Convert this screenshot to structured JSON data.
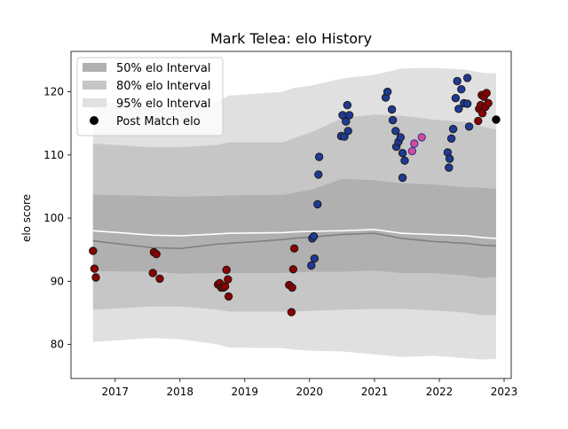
{
  "chart_data": {
    "type": "scatter",
    "title": "Mark Telea: elo History",
    "xlabel": "",
    "ylabel": "elo score",
    "xlim": [
      "2016-04-27",
      "2023-02-10"
    ],
    "ylim": [
      74.6,
      126.4
    ],
    "x_ticks": [
      "2017",
      "2018",
      "2019",
      "2020",
      "2021",
      "2022",
      "2023"
    ],
    "y_ticks": [
      80,
      90,
      100,
      110,
      120
    ],
    "grid": false,
    "legend": {
      "position": "top-left",
      "entries": [
        {
          "label": "50% elo Interval",
          "kind": "band",
          "color": "#b0b0b0"
        },
        {
          "label": "80% elo Interval",
          "kind": "band",
          "color": "#c6c6c6"
        },
        {
          "label": "95% elo Interval",
          "kind": "band",
          "color": "#e0e0e0"
        },
        {
          "label": "Post Match elo",
          "kind": "marker",
          "color": "#000000"
        }
      ]
    },
    "colors": {
      "band_50": "#b0b0b0",
      "band_80": "#c6c6c6",
      "band_95": "#e0e0e0",
      "median_line": "#808080",
      "mean_line": "#ffffff",
      "dot_early": "#8b0000",
      "dot_mid": "#1f3a93",
      "dot_highlight": "#d94896",
      "dot_last": "#000000"
    },
    "bands": {
      "x": [
        "2016-08-29",
        "2017-08-01",
        "2018-01-03",
        "2018-08-03",
        "2018-10-02",
        "2019-08-03",
        "2019-10-02",
        "2020-01-11",
        "2020-07-01",
        "2021-01-01",
        "2021-06-03",
        "2021-12-01",
        "2022-06-03",
        "2022-09-02",
        "2022-11-17"
      ],
      "median": [
        96.4,
        95.3,
        95.2,
        95.9,
        96.0,
        96.6,
        96.8,
        97.0,
        97.4,
        97.6,
        96.8,
        96.3,
        96.0,
        95.7,
        95.6
      ],
      "mean": [
        98.0,
        97.3,
        97.2,
        97.5,
        97.6,
        97.7,
        97.8,
        97.9,
        98.0,
        98.2,
        97.6,
        97.4,
        97.2,
        96.9,
        96.8
      ],
      "p50": [
        [
          91.6,
          103.7
        ],
        [
          91.5,
          103.5
        ],
        [
          91.2,
          103.4
        ],
        [
          91.3,
          103.5
        ],
        [
          91.3,
          103.6
        ],
        [
          91.3,
          103.7
        ],
        [
          91.4,
          104.0
        ],
        [
          91.5,
          104.5
        ],
        [
          91.5,
          106.2
        ],
        [
          91.7,
          106.0
        ],
        [
          91.3,
          105.5
        ],
        [
          91.3,
          105.3
        ],
        [
          90.9,
          104.9
        ],
        [
          90.5,
          104.8
        ],
        [
          90.7,
          104.6
        ]
      ],
      "p80": [
        [
          85.5,
          111.8
        ],
        [
          86.0,
          111.2
        ],
        [
          86.0,
          111.2
        ],
        [
          85.5,
          111.6
        ],
        [
          85.2,
          112.0
        ],
        [
          85.2,
          112.0
        ],
        [
          85.2,
          112.6
        ],
        [
          85.3,
          113.6
        ],
        [
          85.5,
          115.8
        ],
        [
          85.6,
          116.4
        ],
        [
          85.6,
          116.2
        ],
        [
          85.4,
          115.6
        ],
        [
          85.0,
          115.2
        ],
        [
          84.6,
          114.5
        ],
        [
          84.7,
          114.0
        ]
      ],
      "p95": [
        [
          80.4,
          118.6
        ],
        [
          81.0,
          117.4
        ],
        [
          80.8,
          117.5
        ],
        [
          80.0,
          118.5
        ],
        [
          79.5,
          119.4
        ],
        [
          79.4,
          120.0
        ],
        [
          79.2,
          120.6
        ],
        [
          79.0,
          121.0
        ],
        [
          78.9,
          122.1
        ],
        [
          78.4,
          122.7
        ],
        [
          78.0,
          123.7
        ],
        [
          78.2,
          123.8
        ],
        [
          77.8,
          123.5
        ],
        [
          77.6,
          123.0
        ],
        [
          77.7,
          122.9
        ]
      ]
    },
    "series": [
      {
        "group": "early",
        "points": [
          [
            "2016-08-29",
            94.8
          ],
          [
            "2016-09-06",
            92.0
          ],
          [
            "2016-09-14",
            90.6
          ],
          [
            "2017-08-01",
            91.3
          ],
          [
            "2017-08-07",
            94.6
          ],
          [
            "2017-08-21",
            94.3
          ],
          [
            "2017-09-09",
            90.4
          ],
          [
            "2018-08-03",
            89.5
          ],
          [
            "2018-08-13",
            89.7
          ],
          [
            "2018-08-21",
            89.0
          ],
          [
            "2018-09-03",
            89.0
          ],
          [
            "2018-09-12",
            89.2
          ],
          [
            "2018-09-20",
            91.8
          ],
          [
            "2018-09-28",
            90.3
          ],
          [
            "2018-10-02",
            87.6
          ],
          [
            "2019-09-08",
            89.4
          ],
          [
            "2019-09-21",
            85.1
          ],
          [
            "2019-09-25",
            89.0
          ],
          [
            "2019-10-01",
            91.9
          ],
          [
            "2019-10-07",
            95.2
          ]
        ]
      },
      {
        "group": "mid",
        "points": [
          [
            "2020-01-11",
            92.5
          ],
          [
            "2020-01-16",
            96.8
          ],
          [
            "2020-01-25",
            97.1
          ],
          [
            "2020-01-29",
            93.6
          ],
          [
            "2020-02-15",
            102.2
          ],
          [
            "2020-02-20",
            106.9
          ],
          [
            "2020-02-24",
            109.7
          ],
          [
            "2020-06-27",
            113.0
          ],
          [
            "2020-07-05",
            116.3
          ],
          [
            "2020-07-15",
            112.9
          ],
          [
            "2020-07-24",
            115.3
          ],
          [
            "2020-08-01",
            117.9
          ],
          [
            "2020-08-05",
            113.8
          ],
          [
            "2020-08-12",
            116.3
          ],
          [
            "2021-03-05",
            119.1
          ],
          [
            "2021-03-15",
            120.0
          ],
          [
            "2021-04-09",
            117.2
          ],
          [
            "2021-04-14",
            115.5
          ],
          [
            "2021-04-30",
            113.8
          ],
          [
            "2021-05-04",
            111.3
          ],
          [
            "2021-05-16",
            112.1
          ],
          [
            "2021-05-28",
            112.8
          ],
          [
            "2021-06-08",
            110.3
          ],
          [
            "2021-06-08",
            106.4
          ],
          [
            "2021-06-20",
            109.1
          ],
          [
            "2022-02-17",
            110.4
          ],
          [
            "2022-02-24",
            108.0
          ],
          [
            "2022-02-28",
            109.4
          ],
          [
            "2022-03-10",
            112.6
          ],
          [
            "2022-03-20",
            114.1
          ],
          [
            "2022-04-03",
            119.0
          ],
          [
            "2022-04-12",
            121.7
          ],
          [
            "2022-04-20",
            117.3
          ],
          [
            "2022-05-05",
            120.4
          ],
          [
            "2022-05-20",
            118.2
          ],
          [
            "2022-06-08",
            122.2
          ],
          [
            "2022-06-08",
            118.1
          ],
          [
            "2022-06-18",
            114.5
          ]
        ]
      },
      {
        "group": "highlight",
        "points": [
          [
            "2021-08-01",
            110.6
          ],
          [
            "2021-08-13",
            111.8
          ],
          [
            "2021-09-24",
            112.8
          ]
        ]
      },
      {
        "group": "late",
        "points": [
          [
            "2022-08-08",
            115.4
          ],
          [
            "2022-08-13",
            117.3
          ],
          [
            "2022-08-22",
            117.9
          ],
          [
            "2022-08-28",
            119.5
          ],
          [
            "2022-09-01",
            116.6
          ],
          [
            "2022-09-09",
            119.2
          ],
          [
            "2022-09-17",
            117.6
          ],
          [
            "2022-09-24",
            119.8
          ],
          [
            "2022-10-04",
            118.2
          ]
        ]
      },
      {
        "group": "last",
        "points": [
          [
            "2022-11-17",
            115.6
          ]
        ]
      }
    ]
  }
}
